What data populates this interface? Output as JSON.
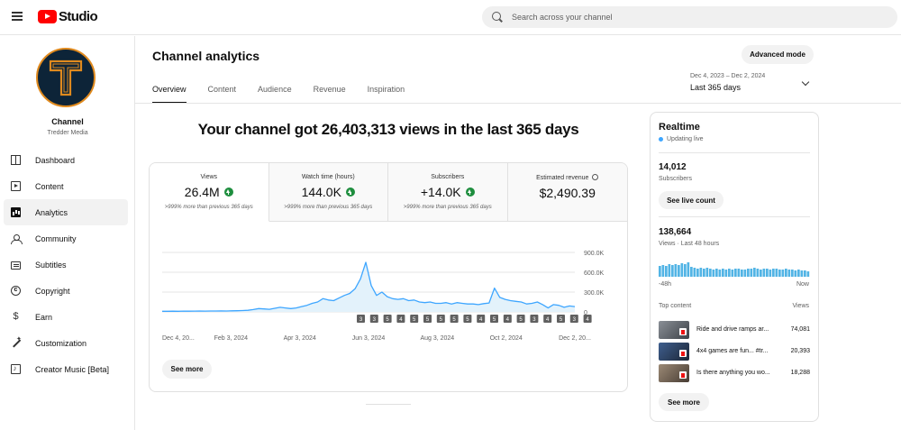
{
  "header": {
    "brand": "Studio",
    "search_placeholder": "Search across your channel"
  },
  "sidebar": {
    "channel_label": "Channel",
    "channel_name": "Tredder Media",
    "items": [
      {
        "label": "Dashboard",
        "icon": "dashboard-icon"
      },
      {
        "label": "Content",
        "icon": "content-icon"
      },
      {
        "label": "Analytics",
        "icon": "analytics-icon",
        "active": true
      },
      {
        "label": "Community",
        "icon": "community-icon"
      },
      {
        "label": "Subtitles",
        "icon": "subtitles-icon"
      },
      {
        "label": "Copyright",
        "icon": "copyright-icon"
      },
      {
        "label": "Earn",
        "icon": "earn-icon"
      },
      {
        "label": "Customization",
        "icon": "customization-icon"
      },
      {
        "label": "Creator Music [Beta]",
        "icon": "creator-music-icon"
      }
    ]
  },
  "main": {
    "title": "Channel analytics",
    "advanced_mode": "Advanced mode",
    "tabs": [
      {
        "label": "Overview",
        "active": true
      },
      {
        "label": "Content"
      },
      {
        "label": "Audience"
      },
      {
        "label": "Revenue"
      },
      {
        "label": "Inspiration"
      }
    ],
    "date_range": {
      "range": "Dec 4, 2023 – Dec 2, 2024",
      "label": "Last 365 days"
    },
    "headline": "Your channel got 26,403,313 views in the last 365 days",
    "metrics": [
      {
        "label": "Views",
        "value": "26.4M",
        "note": ">999% more than previous 365 days"
      },
      {
        "label": "Watch time (hours)",
        "value": "144.0K",
        "note": ">999% more than previous 365 days"
      },
      {
        "label": "Subscribers",
        "value": "+14.0K",
        "note": ">999% more than previous 365 days"
      },
      {
        "label": "Estimated revenue",
        "value": "$2,490.39"
      }
    ],
    "see_more": "See more"
  },
  "chart_data": {
    "type": "line",
    "x_ticks": [
      "Dec 4, 20...",
      "Feb 3, 2024",
      "Apr 3, 2024",
      "Jun 3, 2024",
      "Aug 3, 2024",
      "Oct 2, 2024",
      "Dec 2, 20..."
    ],
    "y_ticks": [
      "900.0K",
      "600.0K",
      "300.0K",
      "0"
    ],
    "ylim": [
      0,
      900000
    ],
    "series": [
      {
        "values": [
          10000,
          10000,
          11000,
          10000,
          12000,
          11000,
          12000,
          13000,
          12000,
          14000,
          13000,
          15000,
          14000,
          16000,
          18000,
          20000,
          25000,
          35000,
          50000,
          45000,
          40000,
          55000,
          70000,
          60000,
          50000,
          60000,
          80000,
          100000,
          130000,
          150000,
          200000,
          180000,
          170000,
          210000,
          250000,
          280000,
          350000,
          500000,
          750000,
          400000,
          250000,
          300000,
          230000,
          200000,
          190000,
          200000,
          170000,
          180000,
          150000,
          140000,
          150000,
          130000,
          130000,
          140000,
          120000,
          140000,
          130000,
          120000,
          120000,
          110000,
          125000,
          135000,
          360000,
          220000,
          190000,
          170000,
          160000,
          150000,
          120000,
          130000,
          150000,
          110000,
          60000,
          110000,
          100000,
          70000,
          90000,
          80000
        ]
      }
    ],
    "markers": [
      "3",
      "3",
      "5",
      "4",
      "5",
      "5",
      "5",
      "5",
      "5",
      "4",
      "5",
      "4",
      "5",
      "3",
      "4",
      "5",
      "3",
      "4"
    ]
  },
  "realtime": {
    "title": "Realtime",
    "status": "Updating live",
    "subscribers": "14,012",
    "subscribers_label": "Subscribers",
    "see_live_count": "See live count",
    "views": "138,664",
    "views_label": "Views · Last 48 hours",
    "axis_left": "-48h",
    "axis_right": "Now",
    "hourly_views": [
      12,
      13,
      12,
      14,
      13,
      14,
      13,
      15,
      14,
      16,
      11,
      10,
      9,
      10,
      9,
      10,
      9,
      8,
      9,
      8,
      9,
      8,
      9,
      8,
      9,
      9,
      8,
      8,
      9,
      9,
      10,
      9,
      8,
      9,
      9,
      8,
      9,
      9,
      8,
      8,
      9,
      8,
      8,
      7,
      8,
      7,
      7,
      6
    ],
    "top_content_label": "Top content",
    "views_col": "Views",
    "rows": [
      {
        "title": "Ride and drive ramps ar...",
        "views": "74,081"
      },
      {
        "title": "4x4 games are fun... #tr...",
        "views": "20,393"
      },
      {
        "title": "Is there anything you wo...",
        "views": "18,288"
      }
    ],
    "see_more": "See more"
  }
}
